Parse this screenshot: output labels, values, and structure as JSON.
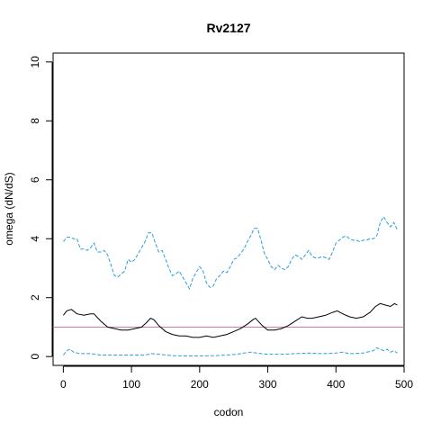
{
  "chart_data": {
    "type": "line",
    "title": "Rv2127",
    "xlabel": "codon",
    "ylabel": "omega (dN/dS)",
    "xlim": [
      -15,
      500
    ],
    "ylim": [
      -0.3,
      10.3
    ],
    "x_ticks": [
      0,
      100,
      200,
      300,
      400,
      500
    ],
    "y_ticks": [
      0,
      2,
      4,
      6,
      8,
      10
    ],
    "grid": false,
    "legend": "none",
    "reference_line": {
      "y": 1,
      "color": "#cc79a7"
    },
    "series": [
      {
        "style": "solid",
        "color": "#000000",
        "x": [
          0,
          5,
          12,
          20,
          30,
          40,
          45,
          55,
          65,
          75,
          85,
          95,
          105,
          115,
          122,
          128,
          133,
          140,
          150,
          160,
          170,
          180,
          190,
          200,
          210,
          220,
          230,
          240,
          250,
          260,
          270,
          278,
          282,
          286,
          292,
          300,
          310,
          320,
          330,
          340,
          350,
          358,
          365,
          375,
          385,
          395,
          402,
          410,
          420,
          430,
          440,
          450,
          458,
          465,
          472,
          480,
          486,
          490
        ],
        "values": [
          1.4,
          1.55,
          1.6,
          1.45,
          1.4,
          1.45,
          1.45,
          1.2,
          1.0,
          0.95,
          0.9,
          0.9,
          0.95,
          1.0,
          1.15,
          1.3,
          1.25,
          1.05,
          0.85,
          0.75,
          0.7,
          0.7,
          0.65,
          0.65,
          0.7,
          0.65,
          0.7,
          0.75,
          0.85,
          0.95,
          1.1,
          1.25,
          1.3,
          1.2,
          1.05,
          0.9,
          0.9,
          0.95,
          1.05,
          1.2,
          1.35,
          1.3,
          1.3,
          1.35,
          1.4,
          1.5,
          1.55,
          1.45,
          1.35,
          1.3,
          1.35,
          1.5,
          1.7,
          1.8,
          1.75,
          1.7,
          1.8,
          1.75
        ]
      },
      {
        "style": "dashed",
        "name_hidden": true,
        "color": "#2c9fd8",
        "x": [
          0,
          5,
          10,
          15,
          20,
          25,
          30,
          35,
          40,
          45,
          50,
          55,
          60,
          65,
          70,
          75,
          80,
          85,
          90,
          95,
          100,
          105,
          110,
          115,
          120,
          125,
          130,
          135,
          140,
          145,
          150,
          155,
          160,
          165,
          170,
          175,
          180,
          185,
          190,
          195,
          200,
          205,
          210,
          215,
          220,
          225,
          230,
          235,
          240,
          245,
          250,
          255,
          260,
          265,
          270,
          275,
          280,
          285,
          290,
          295,
          300,
          305,
          310,
          315,
          320,
          325,
          330,
          335,
          340,
          345,
          350,
          355,
          360,
          365,
          370,
          375,
          380,
          385,
          390,
          395,
          400,
          405,
          410,
          415,
          420,
          425,
          430,
          435,
          440,
          445,
          450,
          455,
          460,
          465,
          470,
          475,
          480,
          485,
          490
        ],
        "values": [
          3.9,
          4.05,
          4.05,
          4.0,
          4.0,
          3.65,
          3.65,
          3.6,
          3.7,
          3.85,
          3.55,
          3.55,
          3.6,
          3.45,
          3.1,
          2.75,
          2.7,
          2.8,
          2.9,
          3.3,
          3.2,
          3.3,
          3.5,
          3.7,
          3.9,
          4.2,
          4.2,
          3.85,
          3.55,
          3.6,
          3.3,
          3.0,
          2.75,
          2.8,
          2.9,
          2.7,
          2.5,
          2.3,
          2.65,
          2.85,
          3.05,
          2.9,
          2.5,
          2.35,
          2.4,
          2.65,
          2.75,
          2.9,
          2.85,
          3.05,
          3.3,
          3.35,
          3.5,
          3.65,
          3.9,
          4.1,
          4.35,
          4.35,
          3.95,
          3.5,
          3.3,
          3.05,
          2.95,
          3.1,
          3.0,
          2.95,
          3.05,
          3.3,
          3.45,
          3.4,
          3.3,
          3.45,
          3.6,
          3.4,
          3.35,
          3.35,
          3.4,
          3.35,
          3.3,
          3.55,
          3.85,
          3.95,
          4.05,
          4.1,
          4.0,
          3.95,
          3.95,
          3.9,
          3.95,
          3.95,
          4.0,
          4.0,
          4.1,
          4.55,
          4.75,
          4.55,
          4.4,
          4.55,
          4.3
        ]
      },
      {
        "style": "dashed",
        "color": "#2c9fd8",
        "x": [
          0,
          5,
          10,
          15,
          25,
          40,
          55,
          70,
          90,
          110,
          120,
          130,
          140,
          160,
          180,
          200,
          220,
          240,
          255,
          265,
          275,
          285,
          290,
          300,
          320,
          340,
          360,
          380,
          400,
          410,
          420,
          440,
          455,
          460,
          465,
          470,
          475,
          480,
          485,
          490
        ],
        "values": [
          0.05,
          0.2,
          0.25,
          0.15,
          0.1,
          0.1,
          0.05,
          0.05,
          0.05,
          0.05,
          0.05,
          0.1,
          0.08,
          0.03,
          0.02,
          0.02,
          0.03,
          0.05,
          0.08,
          0.12,
          0.15,
          0.12,
          0.1,
          0.08,
          0.08,
          0.1,
          0.12,
          0.1,
          0.12,
          0.15,
          0.1,
          0.12,
          0.2,
          0.3,
          0.25,
          0.2,
          0.25,
          0.15,
          0.2,
          0.12
        ]
      }
    ]
  }
}
